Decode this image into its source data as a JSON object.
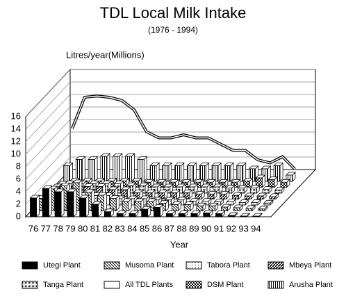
{
  "chart_data": {
    "type": "bar3d",
    "title": "TDL Local Milk Intake",
    "subtitle": "(1976 - 1994)",
    "y_label": "Litres/year(Millions)",
    "x_label": "Year",
    "categories": [
      "76",
      "77",
      "78",
      "79",
      "80",
      "81",
      "82",
      "83",
      "84",
      "85",
      "86",
      "87",
      "88",
      "89",
      "90",
      "91",
      "92",
      "93",
      "94"
    ],
    "ylim": [
      0,
      16
    ],
    "yticks": [
      0,
      2,
      4,
      6,
      8,
      10,
      12,
      14,
      16
    ],
    "grid": true,
    "series": [
      {
        "name": "Utegi Plant",
        "color": "#000000",
        "fill": "solid",
        "values": [
          3,
          4.5,
          4,
          4,
          3,
          2,
          0.8,
          0.5,
          0.5,
          1.2,
          1.5,
          0.5,
          0.5,
          0.5,
          0.6,
          0.5,
          0.2,
          0.1,
          0.1
        ]
      },
      {
        "name": "Musoma Plant",
        "color": "#000000",
        "fill": "hatch",
        "values": [
          2,
          3.5,
          4,
          4.5,
          3,
          2.5,
          2,
          1.5,
          1.5,
          1.5,
          1.2,
          1,
          1,
          0.8,
          0.8,
          0.6,
          0.5,
          0.4,
          0.3
        ]
      },
      {
        "name": "Tabora Plant",
        "color": "#000000",
        "fill": "dots",
        "values": [
          1,
          1.5,
          1.5,
          1.5,
          1.5,
          1.5,
          1,
          1,
          1,
          0.8,
          0.8,
          0.8,
          0.6,
          0.6,
          0.5,
          0.5,
          0.4,
          0.4,
          0.3
        ]
      },
      {
        "name": "Mbeya Plant",
        "color": "#000000",
        "fill": "thick",
        "values": [
          1.5,
          2,
          2,
          2,
          2,
          1.5,
          1.5,
          1,
          1,
          1,
          1,
          1,
          0.8,
          0.8,
          0.8,
          0.6,
          0.5,
          0.5,
          0.4
        ]
      },
      {
        "name": "Tanga Plant",
        "color": "#000000",
        "fill": "fine",
        "values": [
          1,
          1.5,
          1.5,
          1.5,
          1.5,
          1.5,
          1.2,
          1.2,
          1,
          1,
          1,
          1,
          1,
          1,
          0.8,
          0.8,
          0.8,
          0.6,
          0.5
        ]
      },
      {
        "name": "DSM Plant",
        "color": "#000000",
        "fill": "check",
        "values": [
          0.5,
          1,
          1,
          1,
          1,
          1,
          1,
          0.8,
          0.8,
          0.8,
          0.8,
          0.8,
          0.8,
          0.8,
          0.8,
          1,
          1.5,
          1.2,
          0.8
        ]
      },
      {
        "name": "Arusha Plant",
        "color": "#000000",
        "fill": "vert",
        "values": [
          2.5,
          3.5,
          3.5,
          4,
          4,
          4,
          3.5,
          2.5,
          2.5,
          2.5,
          2.5,
          2.5,
          2.5,
          2.5,
          2.5,
          2,
          2,
          2.5,
          1
        ]
      },
      {
        "name": "All TDL Plants",
        "color": "#000000",
        "fill": "white",
        "type": "line",
        "values": [
          7.5,
          12.5,
          12.7,
          12.5,
          12,
          10.5,
          7,
          6,
          6,
          6.5,
          6,
          6,
          5,
          4,
          4,
          2.5,
          2,
          3,
          1
        ]
      }
    ],
    "legend_order": [
      0,
      1,
      2,
      3,
      4,
      7,
      5,
      6
    ]
  }
}
